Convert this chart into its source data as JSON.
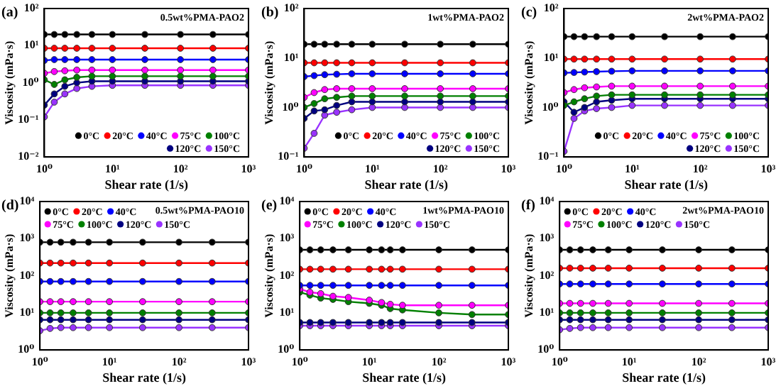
{
  "chart_data": [
    {
      "type": "line",
      "title": "(a)",
      "annotations": [
        "0.5wt%PMA-PAO2"
      ],
      "xlabel": "Shear rate (1/s)",
      "ylabel": "Viscosity (mPa·s)",
      "log": "xy",
      "marker": "circle",
      "legend": "bottom right",
      "xlim": [
        1,
        1000
      ],
      "xticks": [
        {
          "value": 1,
          "label": "10⁰"
        },
        {
          "value": 10,
          "label": "10¹"
        },
        {
          "value": 100,
          "label": "10²"
        },
        {
          "value": 1000,
          "label": "10³"
        }
      ],
      "ylim": [
        0.01,
        100
      ],
      "yticks": [
        {
          "value": 0.01,
          "label": "10⁻²"
        },
        {
          "value": 0.1,
          "label": "10⁻¹"
        },
        {
          "value": 1,
          "label": "10⁰"
        },
        {
          "value": 10,
          "label": "10¹"
        },
        {
          "value": 100,
          "label": "10²"
        }
      ],
      "x": [
        1,
        1.4,
        2,
        3,
        5,
        10,
        30,
        100,
        300,
        1000
      ],
      "series": [
        {
          "name": "0°C",
          "color": "#000000",
          "values": [
            20,
            20,
            20,
            20,
            20,
            20,
            20,
            20,
            20,
            20
          ]
        },
        {
          "name": "20°C",
          "color": "#ff0000",
          "values": [
            8.5,
            8.5,
            8.5,
            8.5,
            8.5,
            8.5,
            8.5,
            8.5,
            8.5,
            8.5
          ]
        },
        {
          "name": "40°C",
          "color": "#0000ff",
          "values": [
            4,
            4.2,
            4.2,
            4.2,
            4.2,
            4.2,
            4.2,
            4.2,
            4.2,
            4.2
          ]
        },
        {
          "name": "75°C",
          "color": "#ff00ff",
          "values": [
            1.8,
            2,
            2.1,
            2.2,
            2.2,
            2.2,
            2.2,
            2.2,
            2.2,
            2.2
          ]
        },
        {
          "name": "100°C",
          "color": "#008000",
          "values": [
            1.2,
            0.9,
            1.2,
            1.4,
            1.5,
            1.5,
            1.5,
            1.5,
            1.5,
            1.5
          ]
        },
        {
          "name": "120°C",
          "color": "#000080",
          "values": [
            0.25,
            0.5,
            0.8,
            1,
            1.1,
            1.1,
            1.1,
            1.1,
            1.1,
            1.1
          ]
        },
        {
          "name": "150°C",
          "color": "#9933ff",
          "values": [
            0.12,
            0.3,
            0.5,
            0.7,
            0.8,
            0.85,
            0.85,
            0.85,
            0.85,
            0.85
          ]
        }
      ]
    },
    {
      "type": "line",
      "title": "(b)",
      "annotations": [
        "1wt%PMA-PAO2"
      ],
      "xlabel": "Shear rate (1/s)",
      "ylabel": "Viscosity (mPa·s)",
      "log": "xy",
      "marker": "circle",
      "legend": "bottom right",
      "xlim": [
        1,
        1000
      ],
      "xticks": [
        {
          "value": 1,
          "label": "10⁰"
        },
        {
          "value": 10,
          "label": "10¹"
        },
        {
          "value": 100,
          "label": "10²"
        },
        {
          "value": 1000,
          "label": "10³"
        }
      ],
      "ylim": [
        0.1,
        100
      ],
      "yticks": [
        {
          "value": 0.1,
          "label": "10⁻¹"
        },
        {
          "value": 1,
          "label": "10⁰"
        },
        {
          "value": 10,
          "label": "10¹"
        },
        {
          "value": 100,
          "label": "10²"
        }
      ],
      "x": [
        1,
        1.4,
        2,
        3,
        5,
        10,
        30,
        100,
        300,
        1000
      ],
      "series": [
        {
          "name": "0°C",
          "color": "#000000",
          "values": [
            19,
            19,
            19,
            19,
            19,
            19,
            19,
            19,
            19,
            19
          ]
        },
        {
          "name": "20°C",
          "color": "#ff0000",
          "values": [
            8,
            8,
            8,
            8,
            8,
            8,
            8,
            8,
            8,
            8
          ]
        },
        {
          "name": "40°C",
          "color": "#0000ff",
          "values": [
            4.2,
            4.4,
            4.6,
            4.7,
            4.8,
            4.8,
            4.8,
            4.8,
            4.8,
            4.8
          ]
        },
        {
          "name": "75°C",
          "color": "#ff00ff",
          "values": [
            1.6,
            2,
            2.3,
            2.4,
            2.4,
            2.4,
            2.4,
            2.4,
            2.4,
            2.4
          ]
        },
        {
          "name": "100°C",
          "color": "#008000",
          "values": [
            1,
            1.2,
            1.5,
            1.6,
            1.7,
            1.7,
            1.7,
            1.7,
            1.7,
            1.7
          ]
        },
        {
          "name": "120°C",
          "color": "#000080",
          "values": [
            0.6,
            0.85,
            0.9,
            1.1,
            1.3,
            1.3,
            1.3,
            1.3,
            1.3,
            1.3
          ]
        },
        {
          "name": "150°C",
          "color": "#9933ff",
          "values": [
            0.15,
            0.3,
            0.7,
            0.8,
            0.9,
            1,
            1,
            1,
            1,
            1
          ]
        }
      ]
    },
    {
      "type": "line",
      "title": "(c)",
      "annotations": [
        "2wt%PMA-PAO2"
      ],
      "xlabel": "Shear rate (1/s)",
      "ylabel": "Viscosity (mPa·s)",
      "log": "xy",
      "marker": "circle",
      "legend": "bottom right",
      "xlim": [
        1,
        1000
      ],
      "xticks": [
        {
          "value": 1,
          "label": "10⁰"
        },
        {
          "value": 10,
          "label": "10¹"
        },
        {
          "value": 100,
          "label": "10²"
        },
        {
          "value": 1000,
          "label": "10³"
        }
      ],
      "ylim": [
        0.1,
        100
      ],
      "yticks": [
        {
          "value": 0.1,
          "label": "10⁻¹"
        },
        {
          "value": 1,
          "label": "10⁰"
        },
        {
          "value": 10,
          "label": "10¹"
        },
        {
          "value": 100,
          "label": "10²"
        }
      ],
      "x": [
        1,
        1.4,
        2,
        3,
        5,
        10,
        30,
        100,
        300,
        1000
      ],
      "series": [
        {
          "name": "0°C",
          "color": "#000000",
          "values": [
            27,
            27,
            27,
            27,
            27,
            27,
            27,
            27,
            27,
            27
          ]
        },
        {
          "name": "20°C",
          "color": "#ff0000",
          "values": [
            9.5,
            9.5,
            9.5,
            9.5,
            9.5,
            9.5,
            9.5,
            9.5,
            9.5,
            9.5
          ]
        },
        {
          "name": "40°C",
          "color": "#0000ff",
          "values": [
            5,
            5.1,
            5.2,
            5.3,
            5.4,
            5.5,
            5.5,
            5.5,
            5.5,
            5.5
          ]
        },
        {
          "name": "75°C",
          "color": "#ff00ff",
          "values": [
            2,
            2.3,
            2.5,
            2.6,
            2.7,
            2.7,
            2.7,
            2.7,
            2.7,
            2.7
          ]
        },
        {
          "name": "100°C",
          "color": "#008000",
          "values": [
            1.1,
            1.3,
            1.5,
            1.7,
            1.8,
            1.8,
            1.8,
            1.8,
            1.8,
            1.8
          ]
        },
        {
          "name": "120°C",
          "color": "#000080",
          "values": [
            1.3,
            0.8,
            1,
            1.3,
            1.4,
            1.5,
            1.5,
            1.5,
            1.5,
            1.5
          ]
        },
        {
          "name": "150°C",
          "color": "#9933ff",
          "values": [
            0.13,
            0.6,
            0.85,
            0.95,
            1,
            1.1,
            1.1,
            1.1,
            1.1,
            1.1
          ]
        }
      ]
    },
    {
      "type": "line",
      "title": "(d)",
      "annotations": [
        "0.5wt%PMA-PAO10"
      ],
      "xlabel": "Shear rate (1/s)",
      "ylabel": "Viscosity (mPa·s)",
      "log": "xy",
      "marker": "circle",
      "legend": "top left",
      "xlim": [
        1,
        1000
      ],
      "xticks": [
        {
          "value": 1,
          "label": "10⁰"
        },
        {
          "value": 10,
          "label": "10¹"
        },
        {
          "value": 100,
          "label": "10²"
        },
        {
          "value": 1000,
          "label": "10³"
        }
      ],
      "ylim": [
        1,
        10000
      ],
      "yticks": [
        {
          "value": 1,
          "label": "10⁰"
        },
        {
          "value": 10,
          "label": "10¹"
        },
        {
          "value": 100,
          "label": "10²"
        },
        {
          "value": 1000,
          "label": "10³"
        },
        {
          "value": 10000,
          "label": "10⁴"
        }
      ],
      "x": [
        1,
        1.4,
        2,
        3,
        5,
        10,
        30,
        100,
        300,
        1000
      ],
      "series": [
        {
          "name": "0°C",
          "color": "#000000",
          "values": [
            800,
            800,
            800,
            800,
            800,
            800,
            800,
            800,
            800,
            800
          ]
        },
        {
          "name": "20°C",
          "color": "#ff0000",
          "values": [
            220,
            220,
            220,
            220,
            220,
            220,
            220,
            220,
            220,
            220
          ]
        },
        {
          "name": "40°C",
          "color": "#0000ff",
          "values": [
            70,
            70,
            70,
            70,
            70,
            70,
            70,
            70,
            70,
            70
          ]
        },
        {
          "name": "75°C",
          "color": "#ff00ff",
          "values": [
            20,
            20,
            20,
            20,
            20,
            20,
            20,
            20,
            20,
            20
          ]
        },
        {
          "name": "100°C",
          "color": "#008000",
          "values": [
            10,
            10,
            10,
            10,
            10,
            10,
            10,
            10,
            10,
            10
          ]
        },
        {
          "name": "120°C",
          "color": "#000080",
          "values": [
            6.5,
            6.5,
            6.5,
            6.5,
            6.5,
            6.5,
            6.5,
            6.5,
            6.5,
            6.5
          ]
        },
        {
          "name": "150°C",
          "color": "#9933ff",
          "values": [
            3.3,
            3.8,
            4,
            4,
            4,
            4,
            4,
            4,
            4,
            4
          ]
        }
      ]
    },
    {
      "type": "line",
      "title": "(e)",
      "annotations": [
        "1wt%PMA-PAO10"
      ],
      "xlabel": "Shear rate (1/s)",
      "ylabel": "Viscosity (mPa·s)",
      "log": "xy",
      "marker": "circle",
      "legend": "top left",
      "xlim": [
        1,
        1000
      ],
      "xticks": [
        {
          "value": 1,
          "label": "10⁰"
        },
        {
          "value": 10,
          "label": "10¹"
        },
        {
          "value": 100,
          "label": "10²"
        },
        {
          "value": 1000,
          "label": "10³"
        }
      ],
      "ylim": [
        1,
        10000
      ],
      "yticks": [
        {
          "value": 1,
          "label": "10⁰"
        },
        {
          "value": 10,
          "label": "10¹"
        },
        {
          "value": 100,
          "label": "10²"
        },
        {
          "value": 1000,
          "label": "10³"
        },
        {
          "value": 10000,
          "label": "10⁴"
        }
      ],
      "x": [
        1,
        1.4,
        2,
        3,
        5,
        10,
        15,
        20,
        30,
        100,
        300,
        1000
      ],
      "series": [
        {
          "name": "0°C",
          "color": "#000000",
          "values": [
            500,
            500,
            500,
            500,
            500,
            500,
            500,
            500,
            500,
            500,
            500,
            500
          ]
        },
        {
          "name": "20°C",
          "color": "#ff0000",
          "values": [
            150,
            150,
            150,
            150,
            150,
            150,
            150,
            150,
            150,
            150,
            150,
            150
          ]
        },
        {
          "name": "40°C",
          "color": "#0000ff",
          "values": [
            55,
            55,
            55,
            55,
            55,
            55,
            55,
            55,
            55,
            55,
            55,
            55
          ]
        },
        {
          "name": "75°C",
          "color": "#ff00ff",
          "values": [
            44,
            36,
            33,
            28,
            26,
            22,
            19,
            17,
            16,
            16,
            16,
            16
          ]
        },
        {
          "name": "100°C",
          "color": "#008000",
          "values": [
            36,
            30,
            25,
            23,
            20,
            18,
            16,
            13,
            12,
            10,
            9,
            9
          ]
        },
        {
          "name": "120°C",
          "color": "#000080",
          "values": [
            5.5,
            5.5,
            5.5,
            5.5,
            5.5,
            5.5,
            5.5,
            5.5,
            5.5,
            5.5,
            5.5,
            5.5
          ]
        },
        {
          "name": "150°C",
          "color": "#9933ff",
          "values": [
            4.5,
            4.5,
            4.5,
            4.5,
            4.5,
            4.5,
            4.5,
            4.5,
            4.5,
            4.5,
            4.5,
            4.5
          ]
        }
      ]
    },
    {
      "type": "line",
      "title": "(f)",
      "annotations": [
        "2wt%PMA-PAO10"
      ],
      "xlabel": "Shear rate (1/s)",
      "ylabel": "Viscosity (mPa·s)",
      "log": "xy",
      "marker": "circle",
      "legend": "top left",
      "xlim": [
        1,
        1000
      ],
      "xticks": [
        {
          "value": 1,
          "label": "10⁰"
        },
        {
          "value": 10,
          "label": "10¹"
        },
        {
          "value": 100,
          "label": "10²"
        },
        {
          "value": 1000,
          "label": "10³"
        }
      ],
      "ylim": [
        1,
        10000
      ],
      "yticks": [
        {
          "value": 1,
          "label": "10⁰"
        },
        {
          "value": 10,
          "label": "10¹"
        },
        {
          "value": 100,
          "label": "10²"
        },
        {
          "value": 1000,
          "label": "10³"
        },
        {
          "value": 10000,
          "label": "10⁴"
        }
      ],
      "x": [
        1,
        1.4,
        2,
        3,
        5,
        10,
        30,
        100,
        300,
        1000
      ],
      "series": [
        {
          "name": "0°C",
          "color": "#000000",
          "values": [
            500,
            500,
            500,
            500,
            500,
            500,
            500,
            500,
            500,
            500
          ]
        },
        {
          "name": "20°C",
          "color": "#ff0000",
          "values": [
            160,
            160,
            160,
            160,
            160,
            160,
            160,
            160,
            160,
            160
          ]
        },
        {
          "name": "40°C",
          "color": "#0000ff",
          "values": [
            60,
            60,
            60,
            60,
            60,
            60,
            60,
            60,
            60,
            60
          ]
        },
        {
          "name": "75°C",
          "color": "#ff00ff",
          "values": [
            18,
            18,
            18,
            18,
            18,
            18,
            18,
            18,
            18,
            18
          ]
        },
        {
          "name": "100°C",
          "color": "#008000",
          "values": [
            10,
            10,
            10,
            10,
            10,
            10,
            10,
            10,
            10,
            10
          ]
        },
        {
          "name": "120°C",
          "color": "#000080",
          "values": [
            6.5,
            6.5,
            6.5,
            6.5,
            6.5,
            6.5,
            6.5,
            6.5,
            6.5,
            6.5
          ]
        },
        {
          "name": "150°C",
          "color": "#9933ff",
          "values": [
            3.5,
            3.8,
            4,
            4,
            4,
            4,
            4,
            4,
            4,
            4
          ]
        }
      ]
    }
  ]
}
